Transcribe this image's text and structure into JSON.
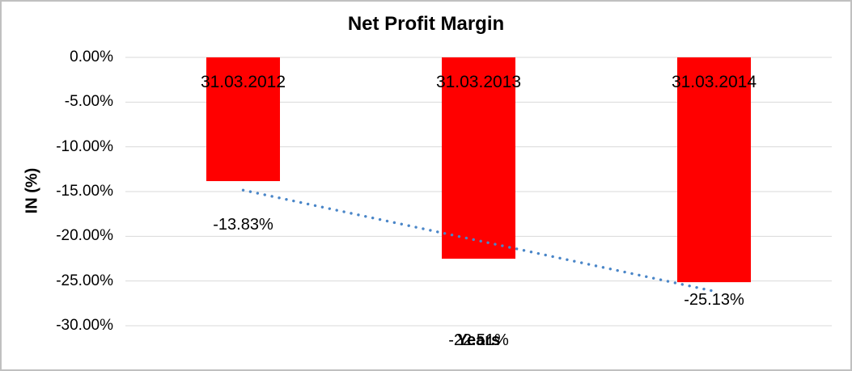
{
  "chart_data": {
    "type": "bar",
    "title": "Net Profit Margin",
    "xlabel": "Years",
    "ylabel": "IN (%)",
    "categories": [
      "31.03.2012",
      "31.03.2013",
      "31.03.2014"
    ],
    "values": [
      -13.83,
      -22.51,
      -25.13
    ],
    "data_labels": [
      "-13.83%",
      "-22.51%",
      "-25.13%"
    ],
    "y_ticks": [
      "0.00%",
      "-5.00%",
      "-10.00%",
      "-15.00%",
      "-20.00%",
      "-25.00%",
      "-30.00%"
    ],
    "y_tick_values": [
      0,
      -5,
      -10,
      -15,
      -20,
      -25,
      -30
    ],
    "ylim": [
      -30,
      0
    ],
    "grid": true,
    "legend": "none",
    "trendline": {
      "type": "linear",
      "style": "dotted",
      "color": "#4A86C8"
    },
    "colors": {
      "bar": "#FF0000",
      "gridline": "#D9D9D9",
      "text": "#000000",
      "background": "#FFFFFF",
      "border": "#C0C0C0"
    }
  }
}
